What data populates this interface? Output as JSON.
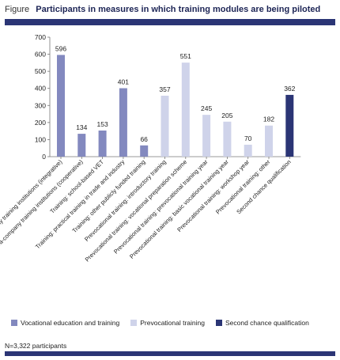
{
  "header": {
    "figure_label": "Figure",
    "title": "Participants in measures in which training modules are being piloted"
  },
  "chart_data": {
    "type": "bar",
    "categories": [
      "VET at extra-company training institutions (integrative)",
      "VET at extra-company training institutions (cooperative)",
      "Training: school-based VET",
      "Training: practical training in trade and industry",
      "Training: other publicly funded training",
      "Prevocational training: introductory training",
      "Prevocational training: vocational preparation scheme",
      "Prevocational training: prevocational training year",
      "Prevocational training: basic vocational training year",
      "Prevocational training: workshop year",
      "Prevocational training: other",
      "Second chance qualification"
    ],
    "values": [
      596,
      134,
      153,
      401,
      66,
      357,
      551,
      245,
      205,
      70,
      182,
      362
    ],
    "value_labels": [
      "596",
      "134",
      "153",
      "401",
      "66",
      "357",
      "551",
      "245",
      "205",
      "70",
      "182",
      "362"
    ],
    "groups": [
      0,
      0,
      0,
      0,
      0,
      1,
      1,
      1,
      1,
      1,
      1,
      2
    ],
    "yticks": [
      "0",
      "100",
      "200",
      "300",
      "400",
      "500",
      "600",
      "700"
    ],
    "ylim": [
      0,
      700
    ],
    "grid": false,
    "legend_position": "bottom",
    "colors": [
      "#8389bf",
      "#cfd3ea",
      "#2b3575"
    ]
  },
  "legend": {
    "items": [
      {
        "label": "Vocational education and training",
        "color": "#8389bf"
      },
      {
        "label": "Prevocational training",
        "color": "#cfd3ea"
      },
      {
        "label": "Second chance qualification",
        "color": "#2b3575"
      }
    ]
  },
  "footnote": "N=3,322 participants"
}
